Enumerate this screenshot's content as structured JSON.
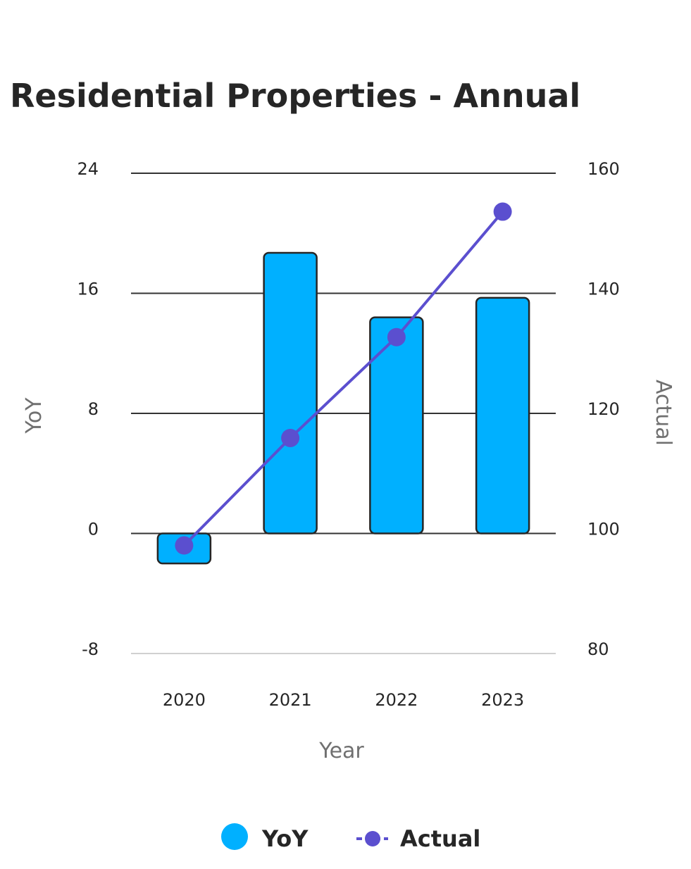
{
  "chart_data": {
    "type": "bar",
    "title": "Residential Properties - Annual",
    "xlabel": "Year",
    "ylabel": "YoY",
    "y2label": "Actual",
    "categories": [
      "2020",
      "2021",
      "2022",
      "2023"
    ],
    "series": [
      {
        "name": "YoY",
        "type": "bar",
        "axis": "left",
        "color": "#00B0FF",
        "values": [
          -2.0,
          18.7,
          14.4,
          15.7
        ]
      },
      {
        "name": "Actual",
        "type": "line",
        "axis": "right",
        "color": "#5B4FCF",
        "values": [
          98.0,
          115.9,
          132.7,
          153.6
        ]
      }
    ],
    "ylim": [
      -8,
      24
    ],
    "yticks": [
      "-8",
      "0",
      "8",
      "16",
      "24"
    ],
    "y2lim": [
      80,
      160
    ],
    "y2ticks": [
      "80",
      "100",
      "120",
      "140",
      "160"
    ],
    "legend": [
      "YoY",
      "Actual"
    ],
    "legend_position": "bottom",
    "grid": true
  }
}
